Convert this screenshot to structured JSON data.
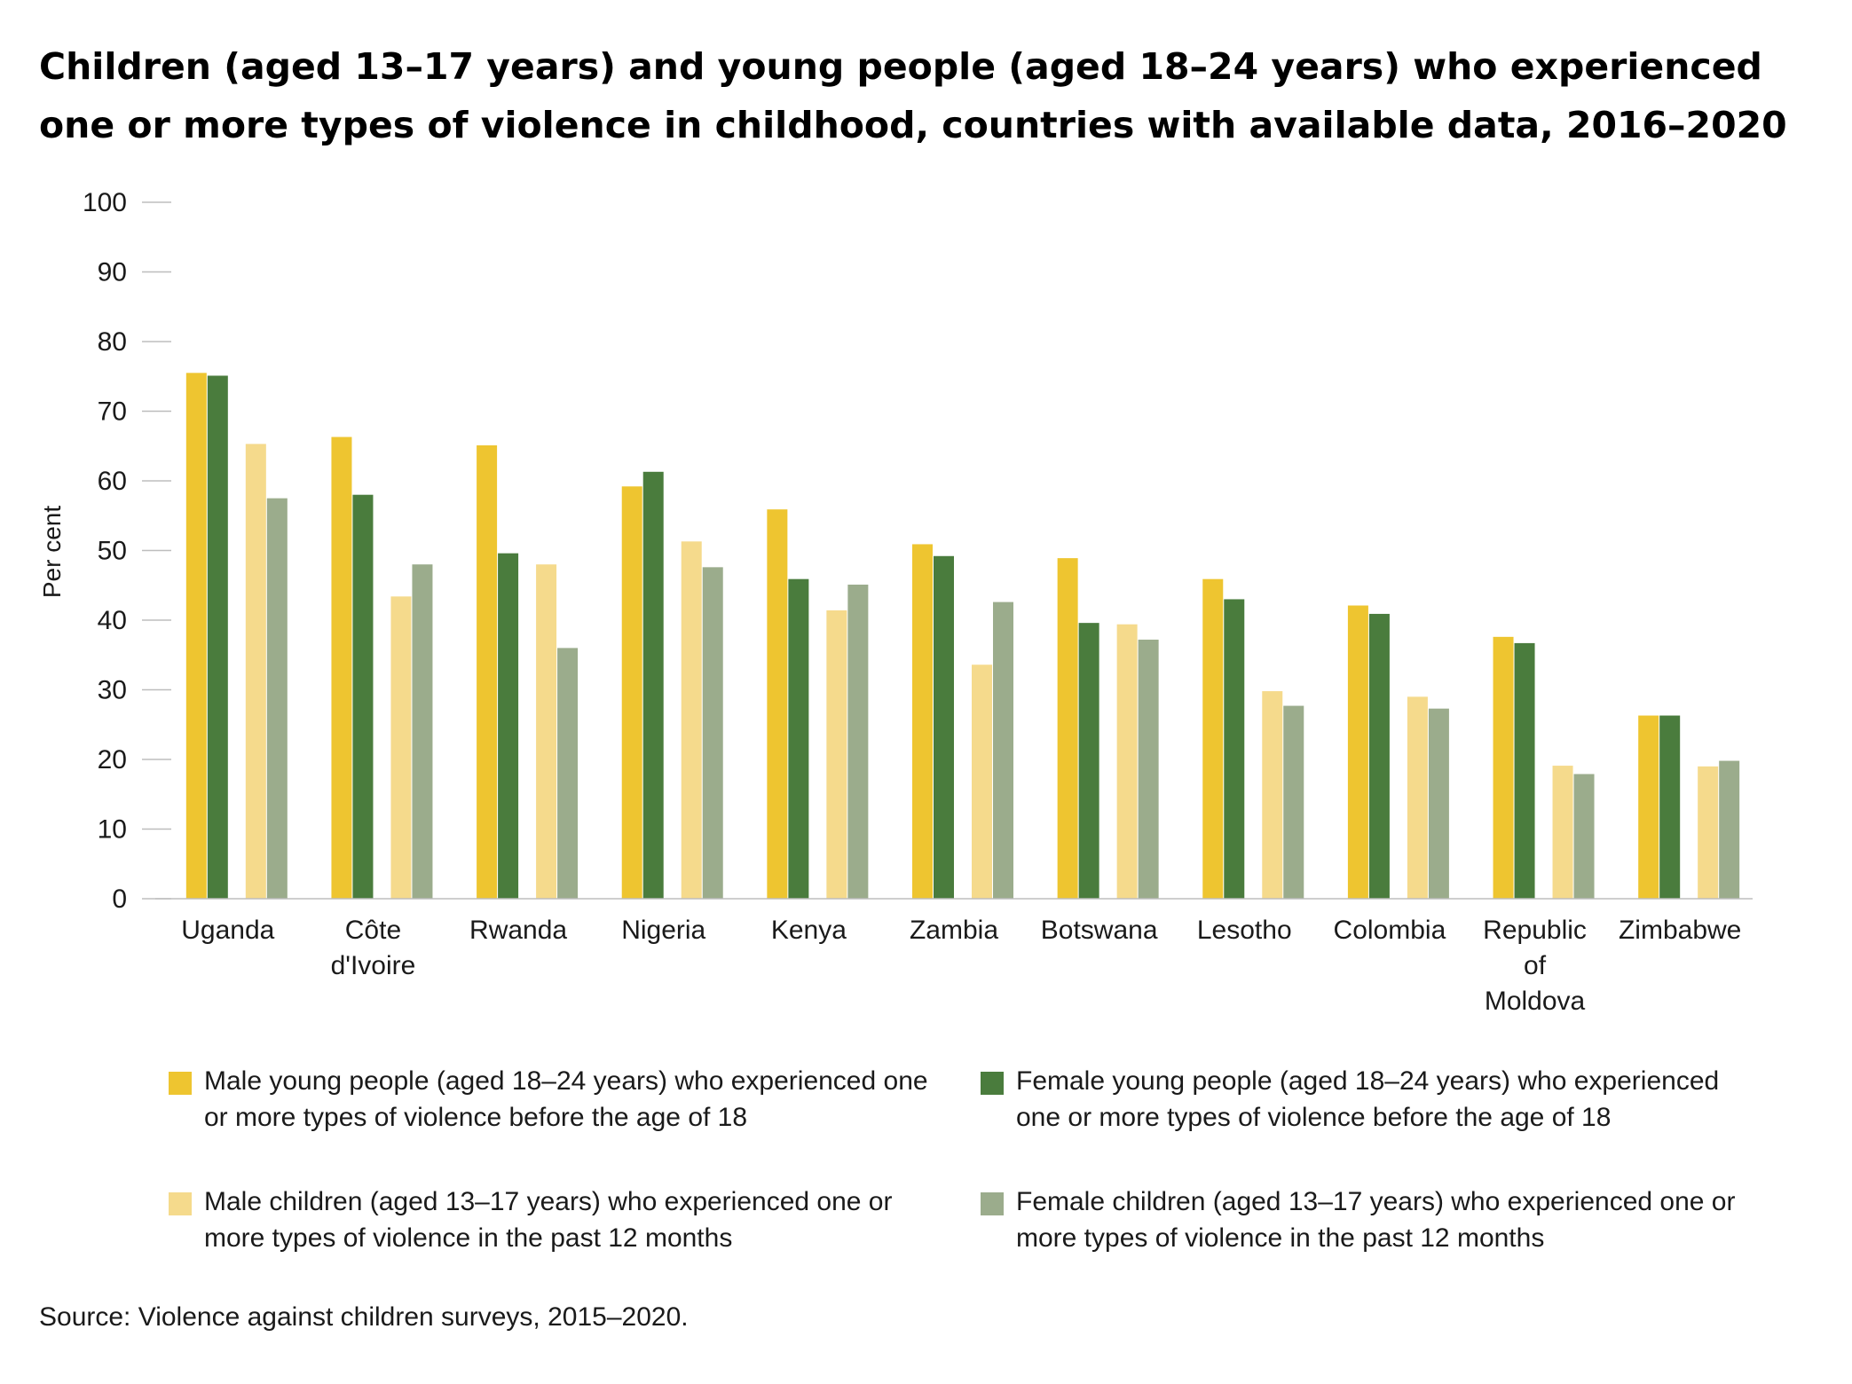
{
  "chart_data": {
    "type": "bar",
    "title": "Children (aged 13–17 years) and young people (aged 18–24 years) who experienced one or more types of violence in childhood, countries with available data, 2016–2020",
    "xlabel": "",
    "ylabel": "Per cent",
    "ylim": [
      0,
      100
    ],
    "yticks": [
      "0",
      "10",
      "20",
      "30",
      "40",
      "50",
      "60",
      "70",
      "80",
      "90",
      "100"
    ],
    "grid": false,
    "legend_position": "bottom",
    "categories": [
      [
        "Uganda"
      ],
      [
        "Côte",
        "d'Ivoire"
      ],
      [
        "Rwanda"
      ],
      [
        "Nigeria"
      ],
      [
        "Kenya"
      ],
      [
        "Zambia"
      ],
      [
        "Botswana"
      ],
      [
        "Lesotho"
      ],
      [
        "Colombia"
      ],
      [
        "Republic",
        "of",
        "Moldova"
      ],
      [
        "Zimbabwe"
      ]
    ],
    "series": [
      {
        "name": "Male young people (aged 18–24 years) who experienced one or more types of violence before the age of 18",
        "color": "#eec530",
        "values": [
          75.5,
          66.3,
          65.1,
          59.2,
          55.9,
          50.9,
          48.9,
          45.9,
          42.1,
          37.6,
          26.3
        ]
      },
      {
        "name": "Female young people (aged 18–24 years) who experienced one or more types of violence before the age of 18",
        "color": "#4a7c3d",
        "values": [
          75.1,
          58.0,
          49.6,
          61.3,
          45.9,
          49.2,
          39.6,
          43.0,
          40.9,
          36.7,
          26.3
        ]
      },
      {
        "name": "Male children (aged 13–17 years) who experienced one or more types of violence in the past 12 months",
        "color": "#f5da8c",
        "values": [
          65.3,
          43.4,
          48.0,
          51.3,
          41.4,
          33.6,
          39.4,
          29.8,
          29.0,
          19.1,
          19.0
        ]
      },
      {
        "name": "Female children (aged 13–17 years) who experienced one or more types of violence in the past 12 months",
        "color": "#9bac8c",
        "values": [
          57.5,
          48.0,
          36.0,
          47.6,
          45.1,
          42.6,
          37.2,
          27.7,
          27.3,
          17.9,
          19.8
        ]
      }
    ],
    "source": "Source: Violence against children surveys, 2015–2020."
  }
}
